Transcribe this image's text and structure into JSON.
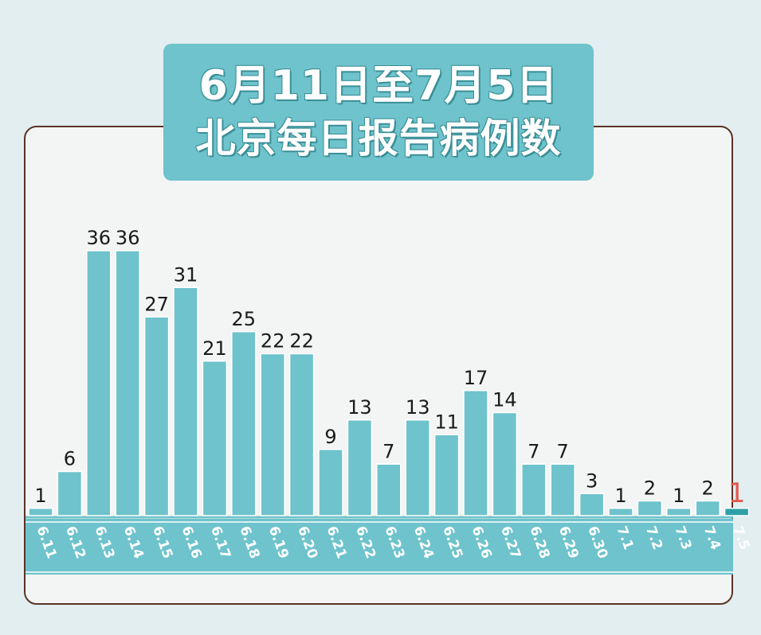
{
  "title_line1": "6月11日至7月5日",
  "title_line2": "北京每日报告病例数",
  "colors": {
    "bar": "#6ec3cc",
    "bar_stroke": "#ffffff",
    "band": "#6ec3cc",
    "tick_text": "#ffffff",
    "value_text": "#1a1a1a",
    "highlight_text": "#e05a4e",
    "highlight_bar": "#2f9fa8"
  },
  "chart_data": {
    "type": "bar",
    "title": "6月11日至7月5日 北京每日报告病例数",
    "xlabel": "",
    "ylabel": "",
    "ylim": [
      0,
      40
    ],
    "grid": false,
    "highlight_index": 24,
    "categories": [
      "6.11",
      "6.12",
      "6.13",
      "6.14",
      "6.15",
      "6.16",
      "6.17",
      "6.18",
      "6.19",
      "6.20",
      "6.21",
      "6.22",
      "6.23",
      "6.24",
      "6.25",
      "6.26",
      "6.27",
      "6.28",
      "6.29",
      "6.30",
      "7.1",
      "7.2",
      "7.3",
      "7.4",
      "7.5"
    ],
    "values": [
      1,
      6,
      36,
      36,
      27,
      31,
      21,
      25,
      22,
      22,
      9,
      13,
      7,
      13,
      11,
      17,
      14,
      7,
      7,
      3,
      1,
      2,
      1,
      2,
      1
    ],
    "labels": [
      "1",
      "6",
      "36",
      "36",
      "27",
      "31",
      "21",
      "25",
      "22",
      "22",
      "9",
      "13",
      "7",
      "13",
      "11",
      "17",
      "14",
      "7",
      "7",
      "3",
      "1",
      "2",
      "1",
      "2",
      "1"
    ]
  }
}
